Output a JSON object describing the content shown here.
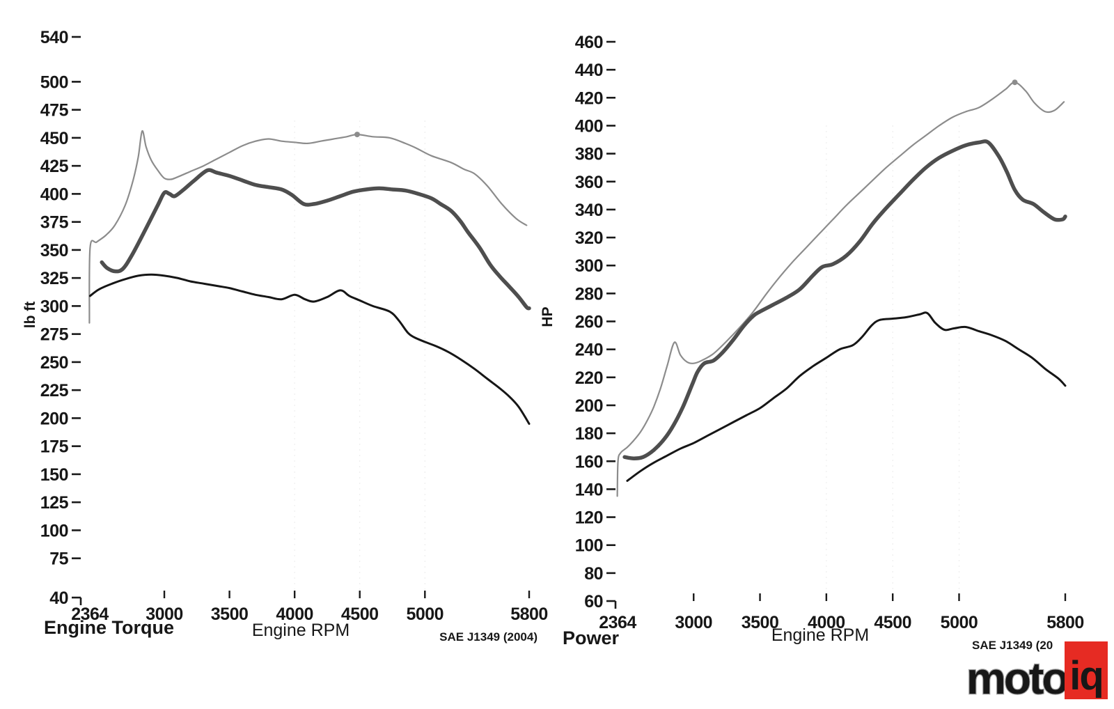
{
  "colors": {
    "light": "#8c8c8c",
    "medium": "#4e4e4e",
    "dark": "#161616",
    "tick": "#1a1a1a",
    "grid": "#d9d9d9",
    "logo_red": "#e62b23",
    "logo_outline": "#9b9b9b",
    "logo_iq_fill": "#ffffff"
  },
  "logo": {
    "moto": "moto",
    "iq": "iq"
  },
  "chart_data": [
    {
      "id": "torque",
      "type": "line",
      "corner_title": "Engine Torque",
      "xlabel": "Engine RPM",
      "ylabel": "lb ft",
      "footnote": "SAE J1349 (2004)",
      "xlim": [
        2364,
        5800
      ],
      "ylim": [
        40,
        540
      ],
      "x_ticks": [
        2364,
        3000,
        3500,
        4000,
        4500,
        5000,
        5800
      ],
      "y_ticks": [
        540,
        500,
        475,
        450,
        425,
        400,
        375,
        350,
        325,
        300,
        275,
        250,
        225,
        200,
        175,
        150,
        125,
        100,
        75,
        40
      ],
      "grid_x": [
        4000,
        4500,
        5000
      ],
      "legend": "none",
      "series": [
        {
          "color_key": "light",
          "width": 2.2,
          "marker": [
            4480,
            453
          ],
          "points": [
            [
              2425,
              285
            ],
            [
              2430,
              352
            ],
            [
              2480,
              357
            ],
            [
              2550,
              363
            ],
            [
              2620,
              372
            ],
            [
              2700,
              390
            ],
            [
              2760,
              412
            ],
            [
              2800,
              433
            ],
            [
              2830,
              456
            ],
            [
              2860,
              442
            ],
            [
              2900,
              430
            ],
            [
              2950,
              421
            ],
            [
              3000,
              414
            ],
            [
              3050,
              413
            ],
            [
              3100,
              415
            ],
            [
              3200,
              420
            ],
            [
              3300,
              425
            ],
            [
              3400,
              431
            ],
            [
              3500,
              437
            ],
            [
              3600,
              443
            ],
            [
              3700,
              447
            ],
            [
              3800,
              449
            ],
            [
              3900,
              447
            ],
            [
              4000,
              446
            ],
            [
              4100,
              445
            ],
            [
              4200,
              447
            ],
            [
              4300,
              449
            ],
            [
              4400,
              451
            ],
            [
              4480,
              453
            ],
            [
              4600,
              451
            ],
            [
              4730,
              450
            ],
            [
              4850,
              445
            ],
            [
              4930,
              441
            ],
            [
              5050,
              434
            ],
            [
              5200,
              428
            ],
            [
              5300,
              422
            ],
            [
              5380,
              418
            ],
            [
              5480,
              407
            ],
            [
              5590,
              391
            ],
            [
              5700,
              378
            ],
            [
              5780,
              372
            ]
          ]
        },
        {
          "color_key": "medium",
          "width": 5.5,
          "points": [
            [
              2520,
              339
            ],
            [
              2560,
              334
            ],
            [
              2620,
              331
            ],
            [
              2680,
              333
            ],
            [
              2750,
              345
            ],
            [
              2850,
              367
            ],
            [
              2950,
              390
            ],
            [
              3000,
              401
            ],
            [
              3040,
              400
            ],
            [
              3080,
              398
            ],
            [
              3150,
              404
            ],
            [
              3230,
              412
            ],
            [
              3330,
              421
            ],
            [
              3400,
              419
            ],
            [
              3500,
              416
            ],
            [
              3600,
              412
            ],
            [
              3700,
              408
            ],
            [
              3800,
              406
            ],
            [
              3900,
              404
            ],
            [
              3980,
              399
            ],
            [
              4070,
              391
            ],
            [
              4150,
              391
            ],
            [
              4250,
              394
            ],
            [
              4350,
              398
            ],
            [
              4450,
              402
            ],
            [
              4550,
              404
            ],
            [
              4650,
              405
            ],
            [
              4750,
              404
            ],
            [
              4850,
              403
            ],
            [
              4950,
              400
            ],
            [
              5050,
              396
            ],
            [
              5120,
              391
            ],
            [
              5200,
              385
            ],
            [
              5270,
              376
            ],
            [
              5330,
              366
            ],
            [
              5420,
              352
            ],
            [
              5500,
              337
            ],
            [
              5570,
              327
            ],
            [
              5650,
              317
            ],
            [
              5720,
              308
            ],
            [
              5780,
              299
            ],
            [
              5800,
              298
            ]
          ]
        },
        {
          "color_key": "dark",
          "width": 3,
          "points": [
            [
              2430,
              309
            ],
            [
              2500,
              315
            ],
            [
              2600,
              320
            ],
            [
              2700,
              324
            ],
            [
              2800,
              327
            ],
            [
              2900,
              328
            ],
            [
              3000,
              327
            ],
            [
              3100,
              325
            ],
            [
              3200,
              322
            ],
            [
              3300,
              320
            ],
            [
              3400,
              318
            ],
            [
              3500,
              316
            ],
            [
              3600,
              313
            ],
            [
              3700,
              310
            ],
            [
              3800,
              308
            ],
            [
              3900,
              306
            ],
            [
              4000,
              310
            ],
            [
              4080,
              306
            ],
            [
              4150,
              304
            ],
            [
              4250,
              308
            ],
            [
              4350,
              314
            ],
            [
              4420,
              309
            ],
            [
              4500,
              305
            ],
            [
              4600,
              300
            ],
            [
              4730,
              295
            ],
            [
              4800,
              287
            ],
            [
              4870,
              276
            ],
            [
              4920,
              272
            ],
            [
              5000,
              268
            ],
            [
              5090,
              264
            ],
            [
              5180,
              259
            ],
            [
              5280,
              252
            ],
            [
              5380,
              244
            ],
            [
              5480,
              235
            ],
            [
              5570,
              227
            ],
            [
              5650,
              219
            ],
            [
              5720,
              210
            ],
            [
              5800,
              195
            ]
          ]
        }
      ]
    },
    {
      "id": "power",
      "type": "line",
      "corner_title": "Power",
      "xlabel": "Engine RPM",
      "ylabel": "HP",
      "footnote": "SAE J1349 (20",
      "xlim": [
        2364,
        5800
      ],
      "ylim": [
        60,
        460
      ],
      "x_ticks": [
        2364,
        3000,
        3500,
        4000,
        4500,
        5000,
        5800
      ],
      "y_ticks": [
        460,
        440,
        420,
        400,
        380,
        360,
        340,
        320,
        300,
        280,
        260,
        240,
        220,
        200,
        180,
        160,
        140,
        120,
        100,
        80,
        60
      ],
      "grid_x": [
        4000,
        4500,
        5000
      ],
      "legend": "none",
      "series": [
        {
          "color_key": "light",
          "width": 2.2,
          "marker": [
            5420,
            431
          ],
          "points": [
            [
              2425,
              135
            ],
            [
              2430,
              160
            ],
            [
              2450,
              166
            ],
            [
              2500,
              170
            ],
            [
              2550,
              175
            ],
            [
              2600,
              181
            ],
            [
              2650,
              189
            ],
            [
              2700,
              199
            ],
            [
              2750,
              212
            ],
            [
              2800,
              228
            ],
            [
              2855,
              245
            ],
            [
              2900,
              236
            ],
            [
              2950,
              231
            ],
            [
              3000,
              230
            ],
            [
              3060,
              232
            ],
            [
              3150,
              237
            ],
            [
              3250,
              246
            ],
            [
              3350,
              256
            ],
            [
              3450,
              267
            ],
            [
              3550,
              280
            ],
            [
              3650,
              292
            ],
            [
              3750,
              303
            ],
            [
              3850,
              313
            ],
            [
              3950,
              323
            ],
            [
              4050,
              333
            ],
            [
              4150,
              343
            ],
            [
              4250,
              352
            ],
            [
              4350,
              361
            ],
            [
              4450,
              370
            ],
            [
              4550,
              378
            ],
            [
              4650,
              386
            ],
            [
              4750,
              393
            ],
            [
              4850,
              400
            ],
            [
              4950,
              406
            ],
            [
              5050,
              410
            ],
            [
              5150,
              413
            ],
            [
              5250,
              419
            ],
            [
              5350,
              426
            ],
            [
              5420,
              431
            ],
            [
              5500,
              425
            ],
            [
              5570,
              416
            ],
            [
              5650,
              410
            ],
            [
              5720,
              411
            ],
            [
              5790,
              417
            ]
          ]
        },
        {
          "color_key": "medium",
          "width": 5.5,
          "points": [
            [
              2480,
              163
            ],
            [
              2550,
              162
            ],
            [
              2620,
              163
            ],
            [
              2700,
              168
            ],
            [
              2780,
              176
            ],
            [
              2850,
              186
            ],
            [
              2920,
              199
            ],
            [
              2990,
              215
            ],
            [
              3030,
              224
            ],
            [
              3080,
              230
            ],
            [
              3150,
              232
            ],
            [
              3220,
              238
            ],
            [
              3300,
              247
            ],
            [
              3380,
              257
            ],
            [
              3450,
              264
            ],
            [
              3500,
              267
            ],
            [
              3600,
              272
            ],
            [
              3700,
              277
            ],
            [
              3800,
              283
            ],
            [
              3900,
              293
            ],
            [
              3970,
              299
            ],
            [
              4050,
              301
            ],
            [
              4150,
              307
            ],
            [
              4250,
              317
            ],
            [
              4350,
              330
            ],
            [
              4450,
              341
            ],
            [
              4550,
              351
            ],
            [
              4650,
              361
            ],
            [
              4750,
              370
            ],
            [
              4850,
              377
            ],
            [
              4950,
              382
            ],
            [
              5050,
              386
            ],
            [
              5150,
              388
            ],
            [
              5220,
              388
            ],
            [
              5300,
              378
            ],
            [
              5360,
              367
            ],
            [
              5420,
              354
            ],
            [
              5480,
              347
            ],
            [
              5560,
              344
            ],
            [
              5640,
              338
            ],
            [
              5720,
              333
            ],
            [
              5780,
              333
            ],
            [
              5800,
              335
            ]
          ]
        },
        {
          "color_key": "dark",
          "width": 3,
          "points": [
            [
              2500,
              146
            ],
            [
              2600,
              153
            ],
            [
              2700,
              159
            ],
            [
              2800,
              164
            ],
            [
              2900,
              169
            ],
            [
              3000,
              173
            ],
            [
              3100,
              178
            ],
            [
              3200,
              183
            ],
            [
              3300,
              188
            ],
            [
              3400,
              193
            ],
            [
              3500,
              198
            ],
            [
              3600,
              205
            ],
            [
              3700,
              212
            ],
            [
              3800,
              221
            ],
            [
              3900,
              228
            ],
            [
              4000,
              234
            ],
            [
              4100,
              240
            ],
            [
              4200,
              243
            ],
            [
              4270,
              249
            ],
            [
              4340,
              257
            ],
            [
              4400,
              261
            ],
            [
              4500,
              262
            ],
            [
              4600,
              263
            ],
            [
              4700,
              265
            ],
            [
              4760,
              266
            ],
            [
              4820,
              259
            ],
            [
              4890,
              254
            ],
            [
              4960,
              255
            ],
            [
              5050,
              256
            ],
            [
              5150,
              253
            ],
            [
              5250,
              250
            ],
            [
              5350,
              246
            ],
            [
              5450,
              240
            ],
            [
              5550,
              234
            ],
            [
              5650,
              226
            ],
            [
              5750,
              219
            ],
            [
              5800,
              214
            ]
          ]
        }
      ]
    }
  ]
}
